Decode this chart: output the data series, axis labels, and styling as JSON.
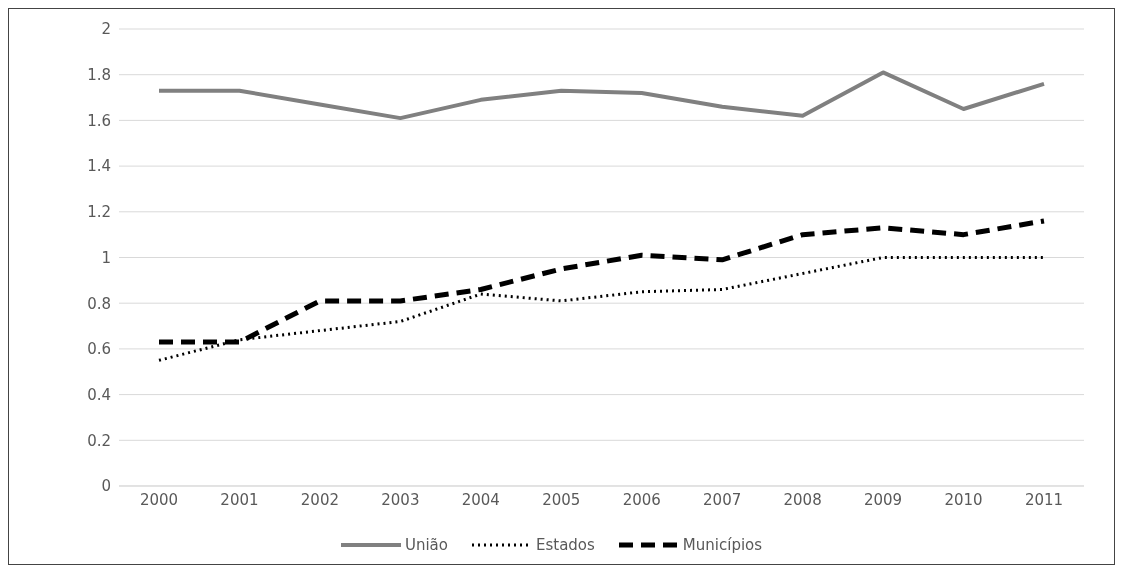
{
  "chart_data": {
    "type": "line",
    "categories": [
      "2000",
      "2001",
      "2002",
      "2003",
      "2004",
      "2005",
      "2006",
      "2007",
      "2008",
      "2009",
      "2010",
      "2011"
    ],
    "series": [
      {
        "name": "União",
        "color": "#808080",
        "line_style": "solid",
        "values": [
          1.73,
          1.73,
          1.67,
          1.61,
          1.69,
          1.73,
          1.72,
          1.66,
          1.62,
          1.81,
          1.65,
          1.76
        ]
      },
      {
        "name": "Estados",
        "color": "#000000",
        "line_style": "dotted",
        "values": [
          0.55,
          0.64,
          0.68,
          0.72,
          0.84,
          0.81,
          0.85,
          0.86,
          0.93,
          1.0,
          1.0,
          1.0
        ]
      },
      {
        "name": "Municípios",
        "color": "#000000",
        "line_style": "dashed",
        "values": [
          0.63,
          0.63,
          0.81,
          0.81,
          0.86,
          0.95,
          1.01,
          0.99,
          1.1,
          1.13,
          1.1,
          1.16
        ]
      }
    ],
    "ylim": [
      0,
      2
    ],
    "yticks": [
      0,
      0.2,
      0.4,
      0.6,
      0.8,
      1,
      1.2,
      1.4,
      1.6,
      1.8,
      2
    ],
    "grid": "y",
    "legend": "bottom",
    "marker": "none"
  }
}
